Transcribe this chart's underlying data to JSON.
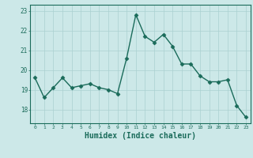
{
  "x": [
    0,
    1,
    2,
    3,
    4,
    5,
    6,
    7,
    8,
    9,
    10,
    11,
    12,
    13,
    14,
    15,
    16,
    17,
    18,
    19,
    20,
    21,
    22,
    23
  ],
  "y": [
    19.6,
    18.6,
    19.1,
    19.6,
    19.1,
    19.2,
    19.3,
    19.1,
    19.0,
    18.8,
    20.6,
    22.8,
    21.7,
    21.4,
    21.8,
    21.2,
    20.3,
    20.3,
    19.7,
    19.4,
    19.4,
    19.5,
    18.2,
    17.6
  ],
  "line_color": "#1a6b5a",
  "marker": "D",
  "markersize": 2.5,
  "linewidth": 1.0,
  "xlabel": "Humidex (Indice chaleur)",
  "xlabel_fontsize": 7,
  "bg_color": "#cce8e8",
  "grid_color": "#aad0d0",
  "tick_color": "#1a6b5a",
  "yticks": [
    18,
    19,
    20,
    21,
    22,
    23
  ],
  "xticks": [
    0,
    1,
    2,
    3,
    4,
    5,
    6,
    7,
    8,
    9,
    10,
    11,
    12,
    13,
    14,
    15,
    16,
    17,
    18,
    19,
    20,
    21,
    22,
    23
  ],
  "ylim": [
    17.3,
    23.3
  ],
  "xlim": [
    -0.5,
    23.5
  ]
}
